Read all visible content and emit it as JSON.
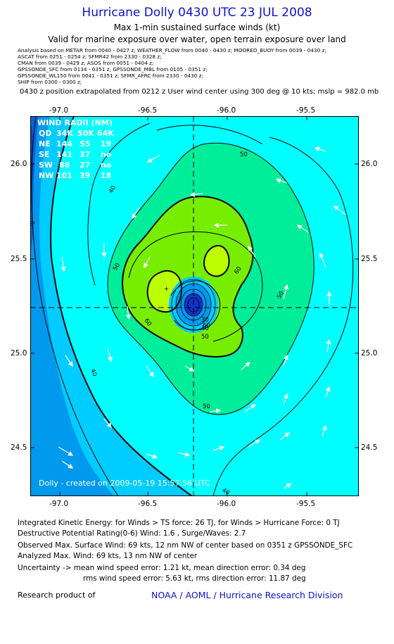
{
  "header": {
    "title": "Hurricane Dolly 0430 UTC 23 JUL 2008",
    "subtitle": "Max 1-min sustained surface winds (kt)",
    "valid_line": "Valid for marine exposure over water, open terrain exposure over land"
  },
  "sources": [
    "Analysis based on   METAR from 0040 - 0427 z;  WEATHER_FLOW from 0040 - 0430 z;  MOORED_BUOY from 0039 - 0430 z;",
    "ASCAT from 0251 - 0254 z;  SFMR42 from 2330 - 0328 z;",
    "CMAN from 0039 - 0429 z;  ASOS from 0051 - 0404 z;",
    "GPSSONDE_SFC from 0134 - 0351 z;  GPSSONDE_MBL from 0105 - 0351 z;",
    "GPSSONDE_WL150 from 0041 - 0351 z;  SFMR_AFRC from 2330 - 0430 z;",
    "SHIP from 0300 - 0300 z;"
  ],
  "position_note": "0430 z position extrapolated from 0212 z User wind center using 300 deg @ 10 kts; mslp = 982.0 mb",
  "map": {
    "longitude_ticks": [
      "-97.0",
      "-96.5",
      "-96.0",
      "-95.5"
    ],
    "latitude_ticks": [
      "26.0",
      "25.5",
      "25.0",
      "24.5"
    ],
    "contour_labels": {
      "c30": "30",
      "c40a": "40",
      "c40b": "40",
      "c40c": "40",
      "c50a": "50",
      "c50b": "50",
      "c50c": "50",
      "c50d": "50",
      "c50e": "50",
      "c60a": "60",
      "c60b": "60",
      "c60c": "60",
      "c30i": "30",
      "c40i": "40"
    },
    "wind_radii": {
      "title": "WIND RADII (NM)",
      "header": [
        "QD",
        "34K",
        "50K",
        "64K"
      ],
      "rows": [
        [
          "NE",
          "144",
          "55",
          "19"
        ],
        [
          "SE",
          "141",
          "37",
          "no"
        ],
        [
          "SW",
          "88",
          "27",
          "na"
        ],
        [
          "NW",
          "101",
          "39",
          "18"
        ]
      ]
    },
    "watermark": "Dolly - created on 2009-05-19 15:57:56 UTC",
    "colors": {
      "bg_cyan": "#00ffff",
      "band_30_40": "#00ccff",
      "band_20_30": "#0099ee",
      "band_below_20": "#0066dd",
      "band_40_50": "#00ee99",
      "band_50_60": "#77ee00",
      "band_60_70": "#bbff00",
      "eye": "#1133cc"
    }
  },
  "footer": {
    "ike": "Integrated Kinetic Energy:  for Winds > TS force: 26 TJ,  for Winds > Hurricane Force: 0 TJ",
    "destructive": "Destructive Potential Rating(0-6)   Wind: 1.6 , Surge/Waves: 2.7",
    "observed": "Observed Max. Surface Wind: 69 kts, 12 nm NW of center based on 0351 z GPSSONDE_SFC",
    "analyzed": "Analyzed Max. Wind: 69 kts, 13 nm NW of center",
    "uncertainty1": "Uncertainty -> mean wind speed error: 1.21 kt,   mean direction error: 0.34 deg",
    "uncertainty2": "rms wind speed error: 5.63 kt,   rms direction error: 11.87 deg",
    "research_label": "Research product of",
    "research_org": "NOAA / AOML / Hurricane Research Division"
  }
}
